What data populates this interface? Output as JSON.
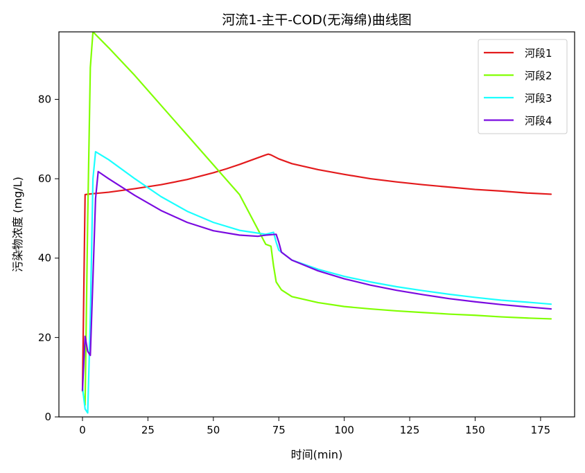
{
  "chart_data": {
    "type": "line",
    "title": "河流1-主干-COD(无海绵)曲线图",
    "xlabel": "时间(min)",
    "ylabel": "污染物浓度 (mg/L)",
    "xlim": [
      -9,
      188
    ],
    "ylim": [
      0,
      97
    ],
    "xticks": [
      0,
      25,
      50,
      75,
      100,
      125,
      150,
      175
    ],
    "yticks": [
      0,
      20,
      40,
      60,
      80
    ],
    "grid": false,
    "legend_position": "top-right",
    "series": [
      {
        "name": "河段1",
        "color": "#e31a1c",
        "points": [
          [
            0,
            6.5
          ],
          [
            1,
            56
          ],
          [
            2,
            56.1
          ],
          [
            5,
            56.3
          ],
          [
            10,
            56.6
          ],
          [
            20,
            57.5
          ],
          [
            30,
            58.5
          ],
          [
            40,
            59.8
          ],
          [
            50,
            61.5
          ],
          [
            55,
            62.5
          ],
          [
            60,
            63.6
          ],
          [
            65,
            64.8
          ],
          [
            70,
            66
          ],
          [
            71,
            66.2
          ],
          [
            72,
            66
          ],
          [
            75,
            65
          ],
          [
            80,
            63.8
          ],
          [
            90,
            62.3
          ],
          [
            100,
            61.1
          ],
          [
            110,
            60
          ],
          [
            120,
            59.2
          ],
          [
            130,
            58.5
          ],
          [
            140,
            57.9
          ],
          [
            150,
            57.3
          ],
          [
            160,
            56.9
          ],
          [
            170,
            56.4
          ],
          [
            179,
            56.1
          ]
        ]
      },
      {
        "name": "河段2",
        "color": "#80ff00",
        "points": [
          [
            0,
            7
          ],
          [
            1,
            3
          ],
          [
            2,
            50
          ],
          [
            3,
            88
          ],
          [
            4,
            97
          ],
          [
            10,
            93
          ],
          [
            20,
            86
          ],
          [
            30,
            78.5
          ],
          [
            40,
            71
          ],
          [
            50,
            63.5
          ],
          [
            60,
            56
          ],
          [
            70,
            43.5
          ],
          [
            72,
            43
          ],
          [
            73,
            38
          ],
          [
            74,
            34
          ],
          [
            76,
            32
          ],
          [
            80,
            30.3
          ],
          [
            90,
            28.8
          ],
          [
            100,
            27.8
          ],
          [
            110,
            27.2
          ],
          [
            120,
            26.7
          ],
          [
            130,
            26.3
          ],
          [
            140,
            25.9
          ],
          [
            150,
            25.6
          ],
          [
            160,
            25.2
          ],
          [
            170,
            24.9
          ],
          [
            179,
            24.7
          ]
        ]
      },
      {
        "name": "河段3",
        "color": "#1affff",
        "points": [
          [
            0,
            7.5
          ],
          [
            1,
            2
          ],
          [
            2,
            1
          ],
          [
            3,
            25
          ],
          [
            4,
            60
          ],
          [
            5,
            66.8
          ],
          [
            10,
            64.8
          ],
          [
            20,
            60
          ],
          [
            30,
            55.5
          ],
          [
            40,
            51.8
          ],
          [
            50,
            49
          ],
          [
            60,
            47
          ],
          [
            70,
            46
          ],
          [
            73,
            46.5
          ],
          [
            74,
            44
          ],
          [
            75,
            42
          ],
          [
            80,
            39.5
          ],
          [
            90,
            37.2
          ],
          [
            100,
            35.4
          ],
          [
            110,
            34
          ],
          [
            120,
            32.8
          ],
          [
            130,
            31.8
          ],
          [
            140,
            30.9
          ],
          [
            150,
            30.1
          ],
          [
            160,
            29.4
          ],
          [
            170,
            28.9
          ],
          [
            179,
            28.4
          ]
        ]
      },
      {
        "name": "河段4",
        "color": "#7a0ae0",
        "points": [
          [
            0,
            6.7
          ],
          [
            1,
            20.3
          ],
          [
            2,
            16.5
          ],
          [
            3,
            15.5
          ],
          [
            4,
            35
          ],
          [
            5,
            55
          ],
          [
            6,
            61.8
          ],
          [
            10,
            60
          ],
          [
            20,
            55.8
          ],
          [
            30,
            52
          ],
          [
            40,
            49
          ],
          [
            50,
            46.9
          ],
          [
            60,
            45.8
          ],
          [
            67,
            45.5
          ],
          [
            70,
            45.8
          ],
          [
            74,
            46
          ],
          [
            75,
            44
          ],
          [
            76,
            41.5
          ],
          [
            80,
            39.5
          ],
          [
            90,
            36.8
          ],
          [
            100,
            34.8
          ],
          [
            110,
            33.2
          ],
          [
            120,
            31.9
          ],
          [
            130,
            30.8
          ],
          [
            140,
            29.8
          ],
          [
            150,
            29
          ],
          [
            160,
            28.3
          ],
          [
            170,
            27.7
          ],
          [
            179,
            27.2
          ]
        ]
      }
    ]
  }
}
